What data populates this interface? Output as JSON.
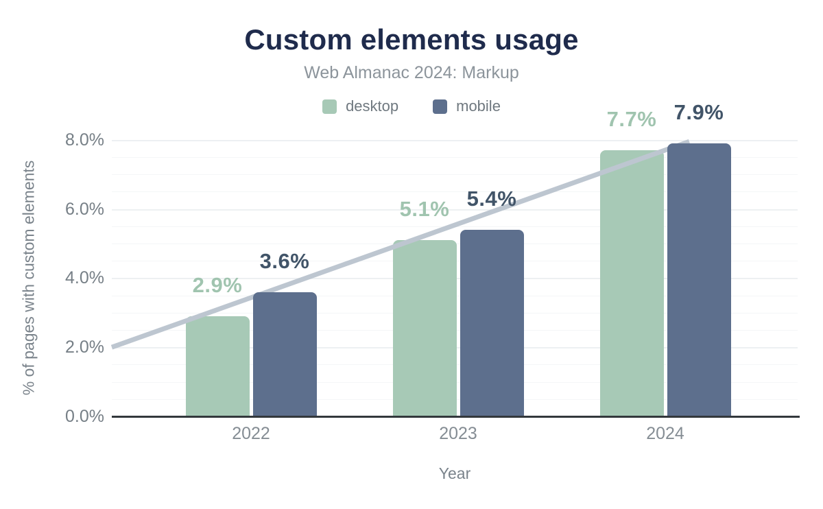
{
  "chart_data": {
    "type": "bar",
    "title": "Custom elements usage",
    "subtitle": "Web Almanac 2024: Markup",
    "xlabel": "Year",
    "ylabel": "% of pages with custom elements",
    "categories": [
      "2022",
      "2023",
      "2024"
    ],
    "series": [
      {
        "name": "desktop",
        "color": "#a7c9b6",
        "label_color": "#a0c4af",
        "values": [
          2.9,
          5.1,
          7.7
        ],
        "value_labels": [
          "2.9%",
          "5.1%",
          "7.7%"
        ]
      },
      {
        "name": "mobile",
        "color": "#5d6f8d",
        "label_color": "#415468",
        "values": [
          3.6,
          5.4,
          7.9
        ],
        "value_labels": [
          "3.6%",
          "5.4%",
          "7.9%"
        ]
      }
    ],
    "trendline": {
      "color": "#bdc6d0",
      "start_x_frac": 0.0,
      "start_pct": 2.0,
      "end_x_frac": 0.842,
      "end_pct": 7.95
    },
    "y_ticks": [
      {
        "value": 0,
        "label": "0.0%"
      },
      {
        "value": 2,
        "label": "2.0%"
      },
      {
        "value": 4,
        "label": "4.0%"
      },
      {
        "value": 6,
        "label": "6.0%"
      },
      {
        "value": 8,
        "label": "8.0%"
      }
    ],
    "ylim": [
      0,
      8
    ],
    "grid": {
      "minor_step_pct": 0.5,
      "minor_color": "#f4f6f7",
      "major_color": "#edf0f2",
      "show": true
    },
    "legend_position": "top"
  },
  "colors": {
    "background": "#ffffff",
    "title": "#1f2b4c",
    "subtitle": "#8c949b",
    "legend_text": "#6f787f",
    "tick_label": "#767f86",
    "axis_title": "#7a838b",
    "axis_line": "#33383c"
  }
}
